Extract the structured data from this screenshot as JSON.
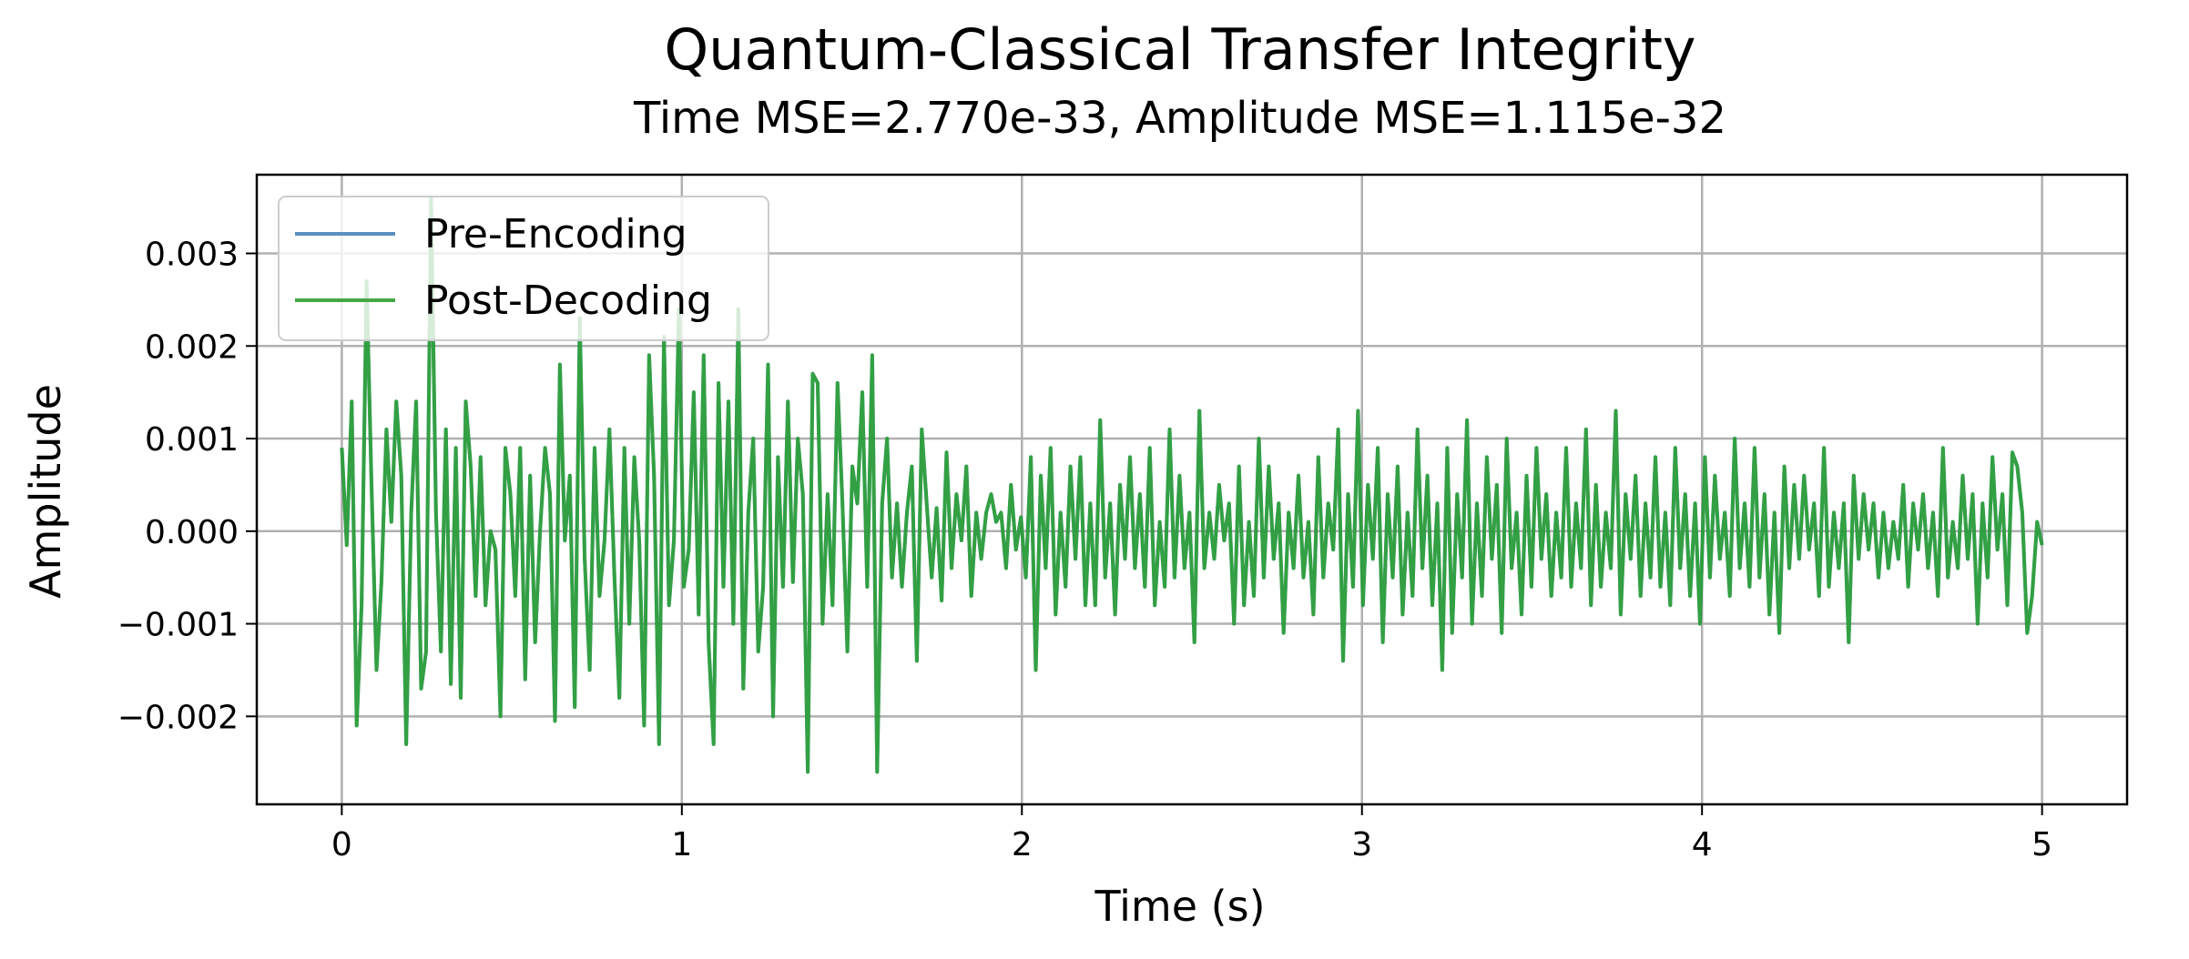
{
  "chart_data": {
    "type": "line",
    "title": "Quantum-Classical Transfer Integrity",
    "subtitle": "Time MSE=2.770e-33, Amplitude MSE=1.115e-32",
    "xlabel": "Time (s)",
    "ylabel": "Amplitude",
    "xlim": [
      -0.25,
      5.25
    ],
    "ylim": [
      -0.00295,
      0.00385
    ],
    "x_ticks": [
      0,
      1,
      2,
      3,
      4,
      5
    ],
    "x_tick_labels": [
      "0",
      "1",
      "2",
      "3",
      "4",
      "5"
    ],
    "y_ticks": [
      -0.002,
      -0.001,
      0.0,
      0.001,
      0.002,
      0.003
    ],
    "y_tick_labels": [
      "−0.002",
      "−0.001",
      "0.000",
      "0.001",
      "0.002",
      "0.003"
    ],
    "grid": true,
    "legend": {
      "location": "upper-left",
      "entries": [
        {
          "label": "Pre-Encoding",
          "color": "#5a8fbf"
        },
        {
          "label": "Post-Decoding",
          "color": "#2ca02c"
        }
      ]
    },
    "series": [
      {
        "name": "Pre-Encoding",
        "color": "#1f77b4",
        "x_start": 0,
        "x_end": 5,
        "values": [
          0.0009,
          -0.00015,
          0.0014,
          -0.0021,
          -0.0008,
          0.0027,
          0.0005,
          -0.0015,
          -0.00055,
          0.0011,
          0.0001,
          0.0014,
          0.0006,
          -0.0023,
          0.0002,
          0.0014,
          -0.0017,
          -0.0013,
          0.0036,
          0.0002,
          -0.0013,
          0.0011,
          -0.00165,
          0.0009,
          -0.0018,
          0.0014,
          0.0007,
          -0.0007,
          0.0008,
          -0.0008,
          0.0,
          -0.0002,
          -0.002,
          0.0009,
          0.0004,
          -0.0007,
          0.0009,
          -0.0016,
          0.0006,
          -0.0012,
          0.0,
          0.0009,
          0.0004,
          -0.00205,
          0.0018,
          -0.0001,
          0.0006,
          -0.0019,
          0.0023,
          -0.0003,
          -0.0015,
          0.0009,
          -0.0007,
          -0.0001,
          0.0011,
          -0.0005,
          -0.0018,
          0.0009,
          -0.001,
          0.0008,
          -0.0001,
          -0.0021,
          0.0019,
          0.0006,
          -0.0023,
          0.0021,
          -0.0008,
          -0.0001,
          0.0024,
          -0.0006,
          -0.0002,
          0.0015,
          -0.0009,
          0.0019,
          -0.0012,
          -0.0023,
          0.0016,
          -0.0006,
          0.0014,
          -0.001,
          0.0024,
          -0.0017,
          0.0002,
          0.001,
          -0.0013,
          -0.0006,
          0.0018,
          -0.002,
          0.0008,
          -0.0006,
          0.0014,
          -0.00055,
          0.001,
          0.0004,
          -0.0026,
          0.0017,
          0.0016,
          -0.001,
          0.0004,
          -0.0008,
          0.0016,
          0.0003,
          -0.0013,
          0.0007,
          0.0003,
          0.0015,
          -0.0006,
          0.0019,
          -0.0026,
          0.0003,
          0.001,
          -0.0005,
          0.0003,
          -0.0006,
          0.0002,
          0.0007,
          -0.0014,
          0.0011,
          0.0003,
          -0.0005,
          0.00025,
          -0.00075,
          0.00085,
          -0.0004,
          0.0004,
          -0.0001,
          0.0007,
          -0.0007,
          0.0002,
          -0.0003,
          0.0002,
          0.0004,
          0.0001,
          0.0002,
          -0.0004,
          0.0005,
          -0.0002,
          0.00015,
          -0.0005,
          0.0008,
          -0.0015,
          0.0006,
          -0.0004,
          0.0009,
          -0.0009,
          0.0002,
          -0.0006,
          0.0007,
          -0.0003,
          0.0008,
          -0.0008,
          0.0003,
          -0.0008,
          0.0012,
          -0.0005,
          0.0003,
          -0.0009,
          0.0005,
          -0.0003,
          0.0008,
          -0.0004,
          0.0004,
          -0.0006,
          0.0009,
          -0.0008,
          0.0001,
          -0.0006,
          0.0011,
          -0.0005,
          0.0006,
          -0.0004,
          0.0002,
          -0.0012,
          0.0013,
          -0.0004,
          0.0002,
          -0.0003,
          0.0005,
          -0.0001,
          0.0003,
          -0.001,
          0.0007,
          -0.0008,
          0.0001,
          -0.0007,
          0.001,
          -0.0005,
          0.0007,
          -0.0003,
          0.0003,
          -0.0011,
          0.0002,
          -0.0004,
          0.0006,
          -0.0005,
          0.0001,
          -0.0009,
          0.0008,
          -0.0005,
          0.0003,
          -0.0002,
          0.0011,
          -0.0014,
          0.0004,
          -0.0006,
          0.0013,
          -0.0008,
          0.0005,
          -0.0003,
          0.0009,
          -0.0012,
          0.0004,
          -0.0005,
          0.0007,
          -0.0009,
          0.0002,
          -0.0007,
          0.0011,
          -0.0004,
          0.0006,
          -0.0008,
          0.0003,
          -0.0015,
          0.0009,
          -0.0011,
          0.0004,
          -0.0005,
          0.0012,
          -0.001,
          0.0003,
          -0.0007,
          0.0008,
          -0.0003,
          0.0005,
          -0.0011,
          0.001,
          -0.0004,
          0.0002,
          -0.0009,
          0.0006,
          -0.0006,
          0.0009,
          -0.0003,
          0.0004,
          -0.0007,
          0.0002,
          -0.0005,
          0.0009,
          -0.0006,
          0.0003,
          -0.0004,
          0.0011,
          -0.0008,
          0.0005,
          -0.0006,
          0.0002,
          -0.0004,
          0.0013,
          -0.0009,
          0.0004,
          -0.0003,
          0.0006,
          -0.0007,
          0.0003,
          -0.0005,
          0.0008,
          -0.0006,
          0.0002,
          -0.0008,
          0.0009,
          -0.0004,
          0.0004,
          -0.0007,
          0.0003,
          -0.001,
          0.0008,
          -0.0005,
          0.0006,
          -0.0003,
          0.0002,
          -0.0007,
          0.001,
          -0.0004,
          0.0003,
          -0.0006,
          0.0009,
          -0.0005,
          0.0004,
          -0.0009,
          0.0002,
          -0.0011,
          0.0007,
          -0.0004,
          0.0005,
          -0.0003,
          0.0006,
          -0.0002,
          0.0003,
          -0.0007,
          0.0009,
          -0.0006,
          0.0002,
          -0.0004,
          0.0003,
          -0.0012,
          0.0006,
          -0.0003,
          0.0004,
          -0.0002,
          0.0003,
          -0.0005,
          0.0002,
          -0.0004,
          0.0001,
          -0.0003,
          0.0005,
          -0.0006,
          0.0003,
          -0.0002,
          0.0004,
          -0.0004,
          0.0002,
          -0.0007,
          0.0009,
          -0.0005,
          0.0001,
          -0.0004,
          0.0006,
          -0.0003,
          0.0004,
          -0.001,
          0.0003,
          -0.0005,
          0.0008,
          -0.0002,
          0.0004,
          -0.0008,
          0.00085,
          0.0007,
          0.0002,
          -0.0011,
          -0.0007,
          0.0001,
          -0.00015
        ]
      },
      {
        "name": "Post-Decoding",
        "color": "#2ca02c",
        "same_as": "Pre-Encoding"
      }
    ]
  }
}
